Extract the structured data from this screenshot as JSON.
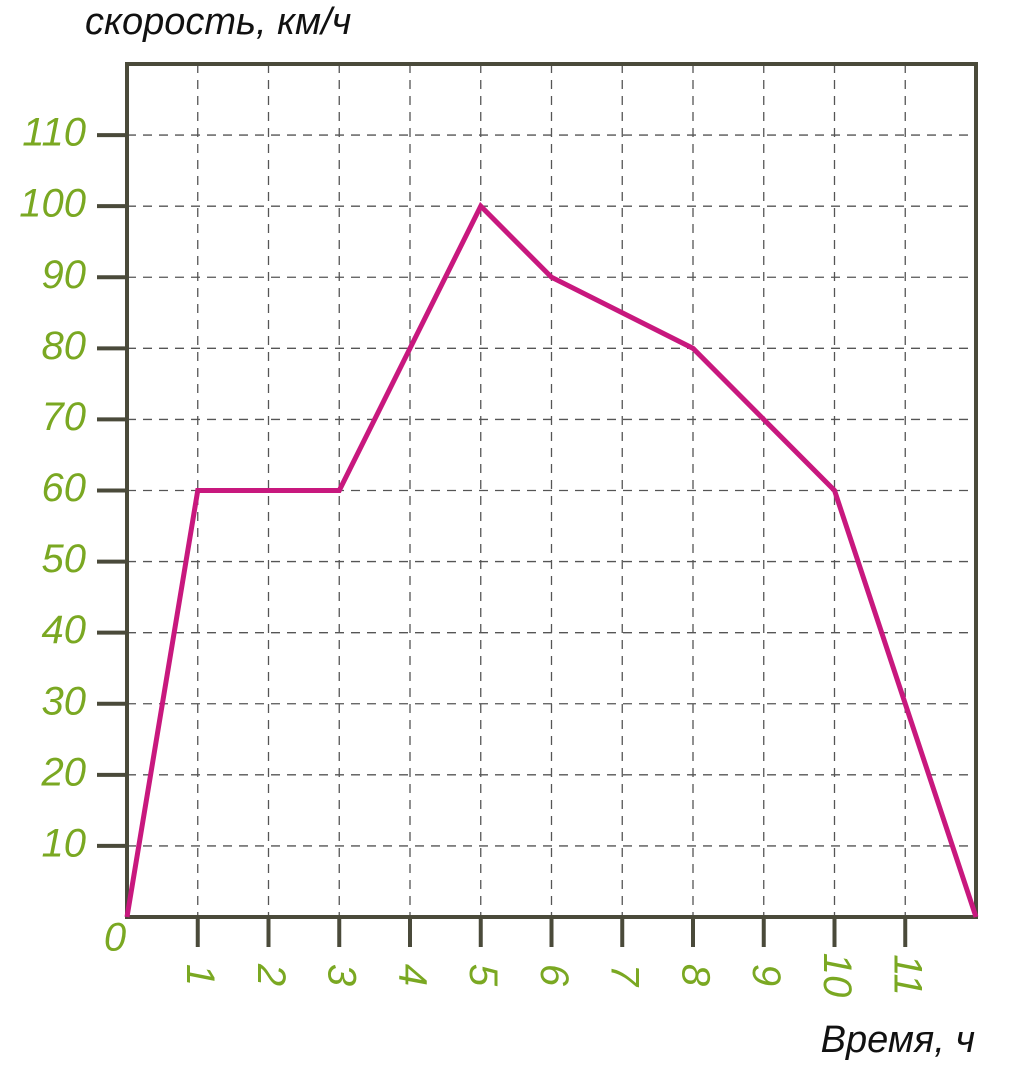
{
  "chart_data": {
    "type": "line",
    "y_label": "скорость, км/ч",
    "x_label": "Время, ч",
    "x": [
      0,
      1,
      3,
      5,
      6,
      8,
      10,
      12
    ],
    "series": [
      {
        "name": "speed",
        "color": "#c8187e",
        "values": [
          0,
          60,
          60,
          100,
          90,
          80,
          60,
          0
        ]
      }
    ],
    "xlim": [
      0,
      12
    ],
    "ylim": [
      0,
      120
    ],
    "xticks": [
      1,
      2,
      3,
      4,
      5,
      6,
      7,
      8,
      9,
      10,
      11
    ],
    "yticks": [
      0,
      10,
      20,
      30,
      40,
      50,
      60,
      70,
      80,
      90,
      100,
      110
    ],
    "grid": true
  }
}
